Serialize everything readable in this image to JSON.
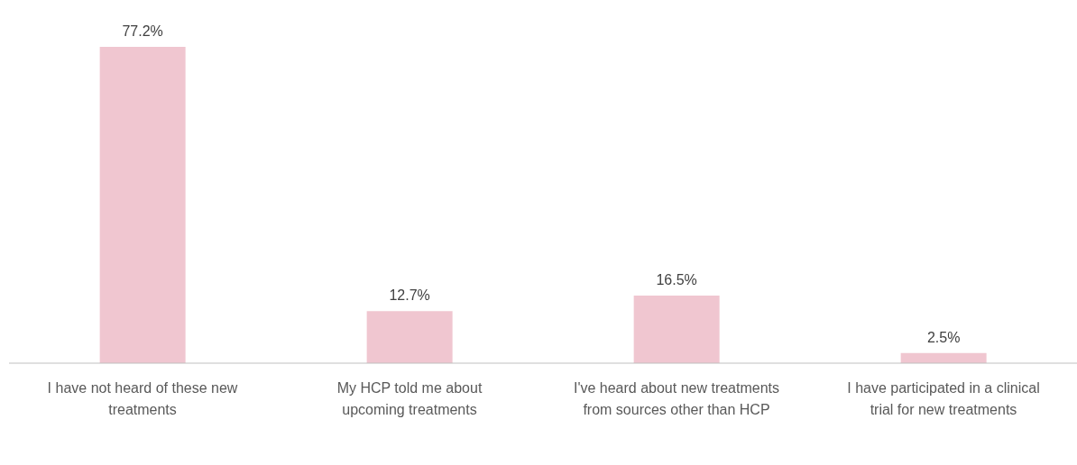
{
  "chart_data": {
    "type": "bar",
    "categories": [
      "I have not heard of these new treatments",
      "My HCP told me about upcoming treatments",
      "I've heard about new treatments from sources other than HCP",
      "I have participated in a clinical trial for new treatments"
    ],
    "values": [
      77.2,
      12.7,
      16.5,
      2.5
    ],
    "value_labels": [
      "77.2%",
      "12.7%",
      "16.5%",
      "2.5%"
    ],
    "color": "#f0c6d0",
    "grid": false
  }
}
